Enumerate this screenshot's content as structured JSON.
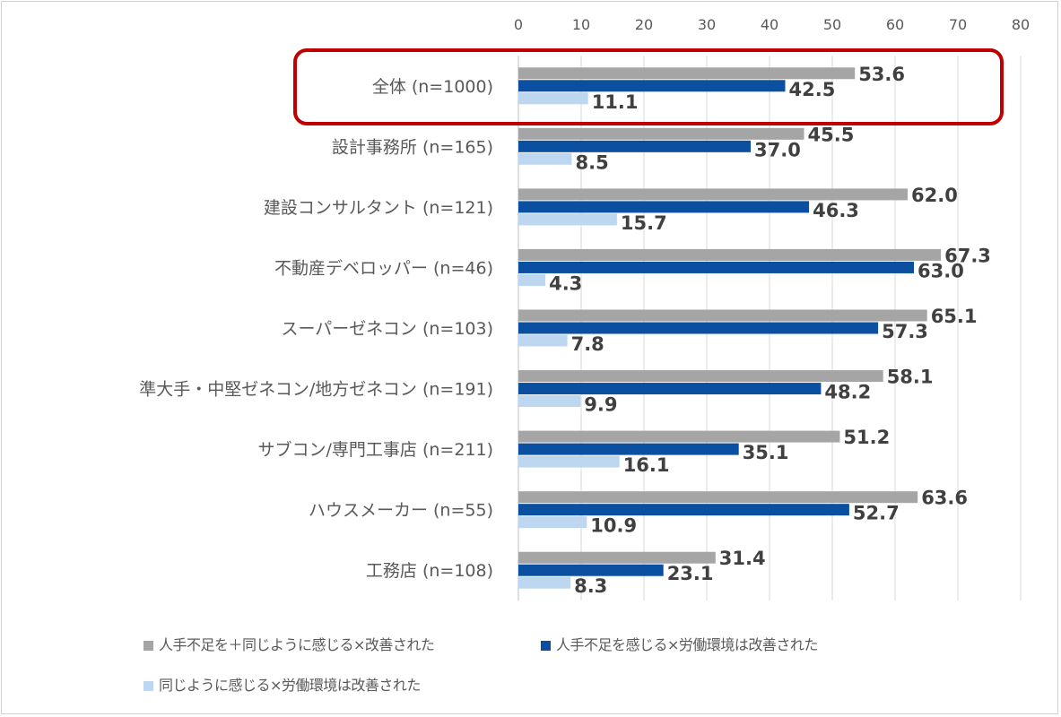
{
  "chart_data": {
    "type": "bar",
    "orientation": "horizontal",
    "categories": [
      "全体 (n=1000)",
      "設計事務所 (n=165)",
      "建設コンサルタント (n=121)",
      "不動産デベロッパー (n=46)",
      "スーパーゼネコン (n=103)",
      "準大手・中堅ゼネコン/地方ゼネコン (n=191)",
      "サブコン/専門工事店 (n=211)",
      "ハウスメーカー (n=55)",
      "工務店 (n=108)"
    ],
    "series": [
      {
        "name": "人手不足を＋同じように感じる×改善された",
        "color": "#a5a5a5",
        "values": [
          53.6,
          45.5,
          62.0,
          67.3,
          65.1,
          58.1,
          51.2,
          63.6,
          31.4
        ]
      },
      {
        "name": "人手不足を感じる×労働環境は改善された",
        "color": "#0b4fa0",
        "values": [
          42.5,
          37.0,
          46.3,
          63.0,
          57.3,
          48.2,
          35.1,
          52.7,
          23.1
        ]
      },
      {
        "name": "同じように感じる×労働環境は改善された",
        "color": "#bdd7f0",
        "values": [
          11.1,
          8.5,
          15.7,
          4.3,
          7.8,
          9.9,
          16.1,
          10.9,
          8.3
        ]
      }
    ],
    "xlim": [
      0,
      80
    ],
    "xticks": [
      "0",
      "10",
      "20",
      "30",
      "40",
      "50",
      "60",
      "70",
      "80"
    ],
    "axis_position": "top",
    "grid": true,
    "legend": "bottom",
    "highlight": {
      "category_index": 0,
      "color": "#c00000"
    }
  }
}
